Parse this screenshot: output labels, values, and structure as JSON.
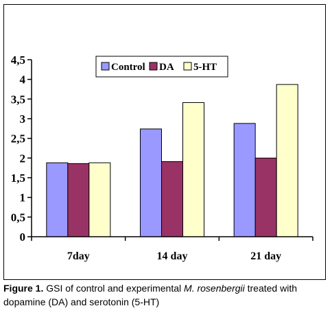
{
  "chart_data": {
    "type": "bar",
    "categories": [
      "7day",
      "14 day",
      "21 day"
    ],
    "series": [
      {
        "name": "Control",
        "color": "#9999ff",
        "values": [
          1.88,
          2.74,
          2.88
        ]
      },
      {
        "name": "DA",
        "color": "#993366",
        "values": [
          1.86,
          1.91,
          2.0
        ]
      },
      {
        "name": "5-HT",
        "color": "#ffffcc",
        "values": [
          1.88,
          3.41,
          3.87
        ]
      }
    ],
    "yticks": [
      "0",
      "0,5",
      "1",
      "1,5",
      "2",
      "2,5",
      "3",
      "3,5",
      "4",
      "4,5"
    ],
    "ylim": [
      0,
      4.5
    ],
    "legend_position": "top-center",
    "grid": false
  },
  "caption": {
    "label": "Figure 1.",
    "text_before": " GSI of control and experimental ",
    "species": "M. rosenbergii",
    "text_after": " treated with dopamine (DA) and serotonin (5-HT)"
  }
}
